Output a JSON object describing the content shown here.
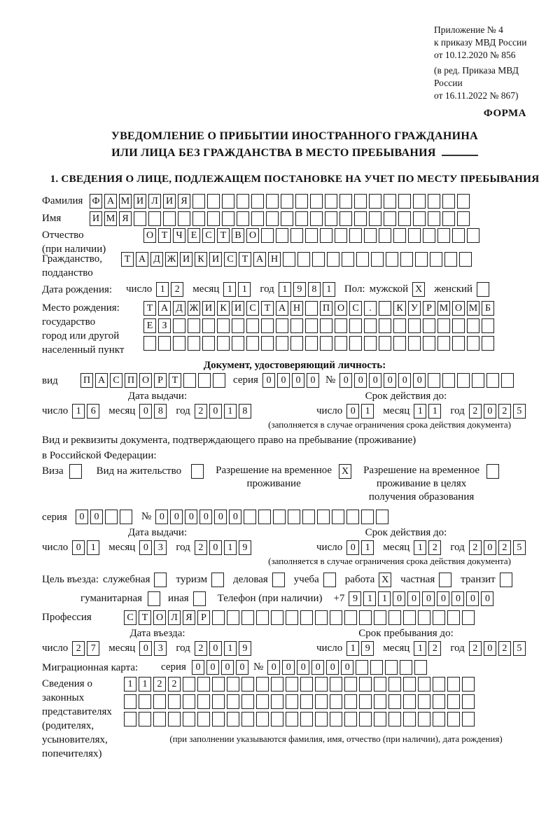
{
  "header": {
    "ref_lines": [
      "Приложение № 4",
      "к приказу МВД России",
      "от 10.12.2020 № 856"
    ],
    "ref_note_lines": [
      "(в ред. Приказа МВД России",
      "от 16.11.2022 № 867)"
    ],
    "forma": "ФОРМА"
  },
  "title": {
    "line1": "УВЕДОМЛЕНИЕ О ПРИБЫТИИ ИНОСТРАННОГО ГРАЖДАНИНА",
    "line2": "ИЛИ ЛИЦА БЕЗ ГРАЖДАНСТВА В МЕСТО ПРЕБЫВАНИЯ"
  },
  "section1": {
    "heading": "1. СВЕДЕНИЯ О ЛИЦЕ, ПОДЛЕЖАЩЕМ ПОСТАНОВКЕ НА УЧЕТ ПО МЕСТУ ПРЕБЫВАНИЯ"
  },
  "labels": {
    "surname": "Фамилия",
    "given_name": "Имя",
    "patronymic_l1": "Отчество",
    "patronymic_l2": "(при наличии)",
    "citizenship_l1": "Гражданство,",
    "citizenship_l2": "подданство",
    "birth_date": "Дата рождения:",
    "day": "число",
    "month": "месяц",
    "year": "год",
    "sex": "Пол:",
    "male": "мужской",
    "female": "женский",
    "birthplace_l1": "Место рождения:",
    "birthplace_l2": "государство",
    "birthplace_l3": "город или другой",
    "birthplace_l4": "населенный пункт",
    "id_doc_heading": "Документ, удостоверяющий личность:",
    "doc_type": "вид",
    "series": "серия",
    "number_sign": "№",
    "issue_date": "Дата выдачи:",
    "validity": "Срок действия до:",
    "validity_note": "(заполняется в случае ограничения срока действия документа)",
    "right_doc_l1": "Вид и реквизиты документа, подтверждающего право на пребывание (проживание)",
    "right_doc_l2": "в Российской Федерации:",
    "visa": "Виза",
    "residence_permit": "Вид на жительство",
    "temp_res_l1": "Разрешение на временное",
    "temp_res_l2": "проживание",
    "temp_res_edu_l1": "Разрешение на временное",
    "temp_res_edu_l2": "проживание в целях",
    "temp_res_edu_l3": "получения образования",
    "purpose": "Цель въезда:",
    "purpose_official": "служебная",
    "purpose_tourism": "туризм",
    "purpose_business": "деловая",
    "purpose_study": "учеба",
    "purpose_work": "работа",
    "purpose_private": "частная",
    "purpose_transit": "транзит",
    "purpose_humanitarian": "гуманитарная",
    "purpose_other": "иная",
    "phone": "Телефон (при наличии)",
    "phone_prefix": "+7",
    "profession": "Профессия",
    "entry_date": "Дата въезда:",
    "stay_until": "Срок пребывания до:",
    "migration_card": "Миграционная карта:",
    "reps_l1": "Сведения о",
    "reps_l2": "законных",
    "reps_l3": "представителях",
    "reps_l4": "(родителях,",
    "reps_l5": "усыновителях,",
    "reps_l6": "попечителях)",
    "reps_note": "(при заполнении указываются фамилия, имя, отчество (при наличии), дата рождения)"
  },
  "fields": {
    "surname": {
      "value": "ФАМИЛИЯ",
      "len": 26
    },
    "given_name": {
      "value": "ИМЯ",
      "len": 26
    },
    "patronymic": {
      "value": "ОТЧЕСТВО",
      "len": 23
    },
    "citizenship": {
      "value": "ТАДЖИКИСТАН",
      "len": 24
    },
    "birth_day": {
      "value": "12",
      "len": 2
    },
    "birth_month": {
      "value": "11",
      "len": 2
    },
    "birth_year": {
      "value": "1981",
      "len": 4
    },
    "sex_male_box": {
      "value": "X",
      "len": 1
    },
    "sex_female_box": {
      "value": "",
      "len": 1
    },
    "birthplace_row1": {
      "value": "ТАДЖИКИСТАН ПОС. КУРМОМБ",
      "len": 24
    },
    "birthplace_row2": {
      "value": "ЕЗ",
      "len": 24
    },
    "birthplace_row3": {
      "value": "",
      "len": 24
    },
    "id_doc_type": {
      "value": "ПАСПОРТ",
      "len": 10
    },
    "id_doc_series": {
      "value": "0000",
      "len": 4
    },
    "id_doc_number": {
      "value": "000000",
      "len": 12
    },
    "id_issue_day": {
      "value": "16",
      "len": 2
    },
    "id_issue_month": {
      "value": "08",
      "len": 2
    },
    "id_issue_year": {
      "value": "2018",
      "len": 4
    },
    "id_expiry_day": {
      "value": "01",
      "len": 2
    },
    "id_expiry_month": {
      "value": "11",
      "len": 2
    },
    "id_expiry_year": {
      "value": "2025",
      "len": 4
    },
    "visa_box": {
      "value": "",
      "len": 1
    },
    "residence_permit_box": {
      "value": "",
      "len": 1
    },
    "temp_res_box": {
      "value": "X",
      "len": 1
    },
    "temp_res_edu_box": {
      "value": "",
      "len": 1
    },
    "permit_series": {
      "value": "00",
      "len": 4
    },
    "permit_number": {
      "value": "000000",
      "len": 16
    },
    "permit_issue_day": {
      "value": "01",
      "len": 2
    },
    "permit_issue_month": {
      "value": "03",
      "len": 2
    },
    "permit_issue_year": {
      "value": "2019",
      "len": 4
    },
    "permit_expiry_day": {
      "value": "01",
      "len": 2
    },
    "permit_expiry_month": {
      "value": "12",
      "len": 2
    },
    "permit_expiry_year": {
      "value": "2025",
      "len": 4
    },
    "purpose_official_box": {
      "value": "",
      "len": 1
    },
    "purpose_tourism_box": {
      "value": "",
      "len": 1
    },
    "purpose_business_box": {
      "value": "",
      "len": 1
    },
    "purpose_study_box": {
      "value": "",
      "len": 1
    },
    "purpose_work_box": {
      "value": "X",
      "len": 1
    },
    "purpose_private_box": {
      "value": "",
      "len": 1
    },
    "purpose_transit_box": {
      "value": "",
      "len": 1
    },
    "purpose_humanitarian_box": {
      "value": "",
      "len": 1
    },
    "purpose_other_box": {
      "value": "",
      "len": 1
    },
    "phone": {
      "value": "9110000000",
      "len": 10
    },
    "profession": {
      "value": "СТОЛЯР",
      "len": 24
    },
    "entry_day": {
      "value": "27",
      "len": 2
    },
    "entry_month": {
      "value": "03",
      "len": 2
    },
    "entry_year": {
      "value": "2019",
      "len": 4
    },
    "stay_day": {
      "value": "19",
      "len": 2
    },
    "stay_month": {
      "value": "12",
      "len": 2
    },
    "stay_year": {
      "value": "2025",
      "len": 4
    },
    "migr_series": {
      "value": "0000",
      "len": 4
    },
    "migr_number": {
      "value": "000000",
      "len": 11
    },
    "reps_row1": {
      "value": "1122",
      "len": 24
    },
    "reps_row2": {
      "value": "",
      "len": 24
    },
    "reps_row3": {
      "value": "",
      "len": 24
    }
  }
}
